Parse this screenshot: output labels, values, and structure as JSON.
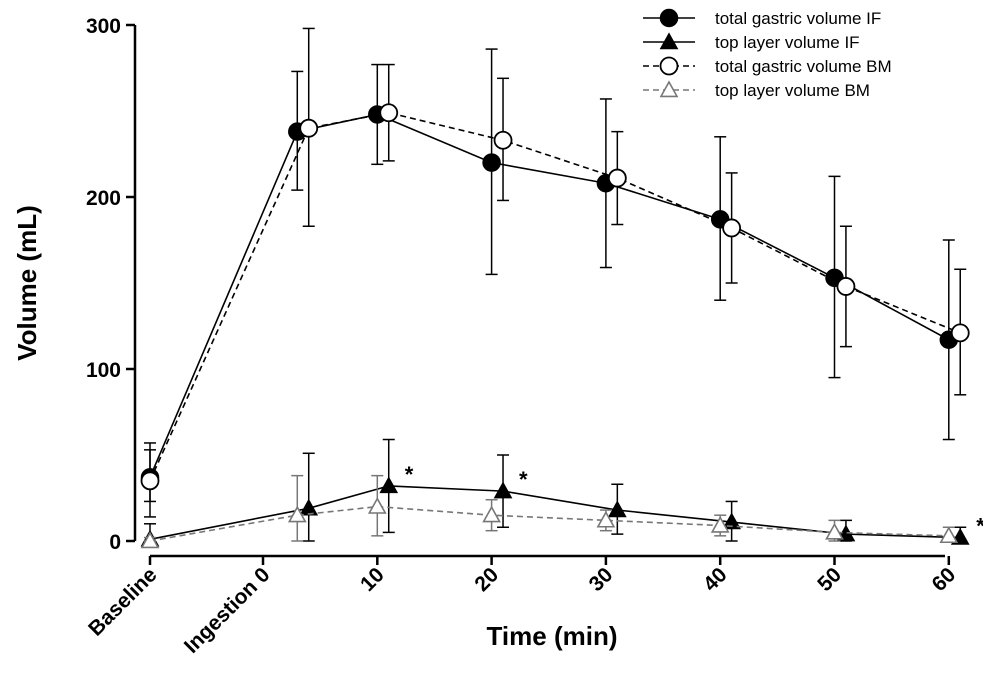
{
  "chart_data": {
    "type": "line",
    "title": "",
    "xlabel": "Time (min)",
    "ylabel": "Volume (mL)",
    "x_tick_labels": [
      "Baseline",
      "Ingestion 0",
      "10",
      "20",
      "30",
      "40",
      "50",
      "60"
    ],
    "y_ticks": [
      0,
      100,
      200,
      300
    ],
    "ylim": [
      0,
      300
    ],
    "legend_position": "top-right",
    "grid": false,
    "x_positions_note": "Baseline placed before Ingestion time 0",
    "series": [
      {
        "name": "total gastric volume IF",
        "marker": "filled-circle",
        "line": "solid",
        "color": "#000000",
        "points": [
          {
            "x": "Baseline",
            "y": 37,
            "err_low": 23,
            "err_high": 53
          },
          {
            "x": 3,
            "y": 238,
            "err_low": 204,
            "err_high": 273
          },
          {
            "x": 10,
            "y": 248,
            "err_low": 219,
            "err_high": 277
          },
          {
            "x": 20,
            "y": 220,
            "err_low": 155,
            "err_high": 286
          },
          {
            "x": 30,
            "y": 208,
            "err_low": 159,
            "err_high": 257
          },
          {
            "x": 40,
            "y": 187,
            "err_low": 140,
            "err_high": 235
          },
          {
            "x": 50,
            "y": 153,
            "err_low": 95,
            "err_high": 212
          },
          {
            "x": 60,
            "y": 117,
            "err_low": 59,
            "err_high": 175
          }
        ]
      },
      {
        "name": "top layer volume IF",
        "marker": "filled-triangle",
        "line": "solid",
        "color": "#000000",
        "points": [
          {
            "x": "Baseline",
            "y": 1,
            "err_low": 0,
            "err_high": 10
          },
          {
            "x": 4,
            "y": 19,
            "err_low": 0,
            "err_high": 51
          },
          {
            "x": 11,
            "y": 32,
            "err_low": 5,
            "err_high": 59
          },
          {
            "x": 21,
            "y": 29,
            "err_low": 8,
            "err_high": 50
          },
          {
            "x": 31,
            "y": 18,
            "err_low": 4,
            "err_high": 33
          },
          {
            "x": 41,
            "y": 11,
            "err_low": 0,
            "err_high": 23
          },
          {
            "x": 51,
            "y": 4,
            "err_low": 0,
            "err_high": 12
          },
          {
            "x": 61,
            "y": 2,
            "err_low": 0,
            "err_high": 8
          }
        ]
      },
      {
        "name": "total gastric volume BM",
        "marker": "open-circle",
        "line": "dashed",
        "color": "#000000",
        "points": [
          {
            "x": "Baseline",
            "y": 35,
            "err_low": 14,
            "err_high": 57
          },
          {
            "x": 4,
            "y": 240,
            "err_low": 183,
            "err_high": 298
          },
          {
            "x": 11,
            "y": 249,
            "err_low": 221,
            "err_high": 277
          },
          {
            "x": 21,
            "y": 233,
            "err_low": 198,
            "err_high": 269
          },
          {
            "x": 31,
            "y": 211,
            "err_low": 184,
            "err_high": 238
          },
          {
            "x": 41,
            "y": 182,
            "err_low": 150,
            "err_high": 214
          },
          {
            "x": 51,
            "y": 148,
            "err_low": 113,
            "err_high": 183
          },
          {
            "x": 61,
            "y": 121,
            "err_low": 85,
            "err_high": 158
          }
        ]
      },
      {
        "name": "top layer volume BM",
        "marker": "open-triangle",
        "line": "dashed",
        "color": "#777777",
        "points": [
          {
            "x": "Baseline",
            "y": 0,
            "err_low": 0,
            "err_high": 2
          },
          {
            "x": 3,
            "y": 15,
            "err_low": 0,
            "err_high": 38
          },
          {
            "x": 10,
            "y": 20,
            "err_low": 3,
            "err_high": 38
          },
          {
            "x": 20,
            "y": 15,
            "err_low": 6,
            "err_high": 24
          },
          {
            "x": 30,
            "y": 12,
            "err_low": 6,
            "err_high": 18
          },
          {
            "x": 40,
            "y": 9,
            "err_low": 3,
            "err_high": 15
          },
          {
            "x": 50,
            "y": 5,
            "err_low": 0,
            "err_high": 12
          },
          {
            "x": 60,
            "y": 3,
            "err_low": 0,
            "err_high": 8
          }
        ]
      }
    ],
    "annotations": [
      {
        "text": "*",
        "x": 11,
        "y": 32
      },
      {
        "text": "*",
        "x": 21,
        "y": 29
      },
      {
        "text": "*",
        "x": 61,
        "y": 2
      }
    ]
  }
}
